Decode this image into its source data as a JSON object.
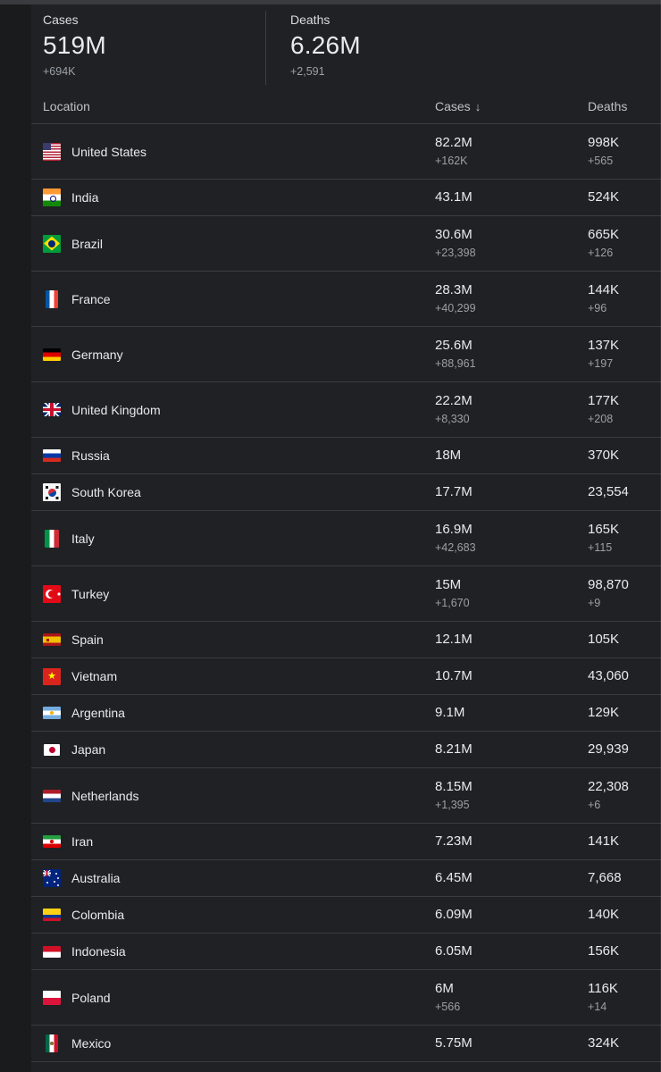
{
  "summary": {
    "cases": {
      "label": "Cases",
      "value": "519M",
      "delta": "+694K"
    },
    "deaths": {
      "label": "Deaths",
      "value": "6.26M",
      "delta": "+2,591"
    }
  },
  "table": {
    "headers": {
      "location": "Location",
      "cases": "Cases",
      "sort_icon": "↓",
      "deaths": "Deaths"
    },
    "rows": [
      {
        "name": "United States",
        "cases": "82.2M",
        "cases_delta": "+162K",
        "deaths": "998K",
        "deaths_delta": "+565"
      },
      {
        "name": "India",
        "cases": "43.1M",
        "cases_delta": "",
        "deaths": "524K",
        "deaths_delta": ""
      },
      {
        "name": "Brazil",
        "cases": "30.6M",
        "cases_delta": "+23,398",
        "deaths": "665K",
        "deaths_delta": "+126"
      },
      {
        "name": "France",
        "cases": "28.3M",
        "cases_delta": "+40,299",
        "deaths": "144K",
        "deaths_delta": "+96"
      },
      {
        "name": "Germany",
        "cases": "25.6M",
        "cases_delta": "+88,961",
        "deaths": "137K",
        "deaths_delta": "+197"
      },
      {
        "name": "United Kingdom",
        "cases": "22.2M",
        "cases_delta": "+8,330",
        "deaths": "177K",
        "deaths_delta": "+208"
      },
      {
        "name": "Russia",
        "cases": "18M",
        "cases_delta": "",
        "deaths": "370K",
        "deaths_delta": ""
      },
      {
        "name": "South Korea",
        "cases": "17.7M",
        "cases_delta": "",
        "deaths": "23,554",
        "deaths_delta": ""
      },
      {
        "name": "Italy",
        "cases": "16.9M",
        "cases_delta": "+42,683",
        "deaths": "165K",
        "deaths_delta": "+115"
      },
      {
        "name": "Turkey",
        "cases": "15M",
        "cases_delta": "+1,670",
        "deaths": "98,870",
        "deaths_delta": "+9"
      },
      {
        "name": "Spain",
        "cases": "12.1M",
        "cases_delta": "",
        "deaths": "105K",
        "deaths_delta": ""
      },
      {
        "name": "Vietnam",
        "cases": "10.7M",
        "cases_delta": "",
        "deaths": "43,060",
        "deaths_delta": ""
      },
      {
        "name": "Argentina",
        "cases": "9.1M",
        "cases_delta": "",
        "deaths": "129K",
        "deaths_delta": ""
      },
      {
        "name": "Japan",
        "cases": "8.21M",
        "cases_delta": "",
        "deaths": "29,939",
        "deaths_delta": ""
      },
      {
        "name": "Netherlands",
        "cases": "8.15M",
        "cases_delta": "+1,395",
        "deaths": "22,308",
        "deaths_delta": "+6"
      },
      {
        "name": "Iran",
        "cases": "7.23M",
        "cases_delta": "",
        "deaths": "141K",
        "deaths_delta": ""
      },
      {
        "name": "Australia",
        "cases": "6.45M",
        "cases_delta": "",
        "deaths": "7,668",
        "deaths_delta": ""
      },
      {
        "name": "Colombia",
        "cases": "6.09M",
        "cases_delta": "",
        "deaths": "140K",
        "deaths_delta": ""
      },
      {
        "name": "Indonesia",
        "cases": "6.05M",
        "cases_delta": "",
        "deaths": "156K",
        "deaths_delta": ""
      },
      {
        "name": "Poland",
        "cases": "6M",
        "cases_delta": "+566",
        "deaths": "116K",
        "deaths_delta": "+14"
      },
      {
        "name": "Mexico",
        "cases": "5.75M",
        "cases_delta": "",
        "deaths": "324K",
        "deaths_delta": ""
      }
    ]
  },
  "colors": {
    "panel_background": "#202124",
    "gutter_background": "#1a1b1d",
    "text_primary": "#e8eaed",
    "text_secondary": "#9aa0a6",
    "header_text": "#bdc1c6",
    "divider": "#3c4043"
  }
}
